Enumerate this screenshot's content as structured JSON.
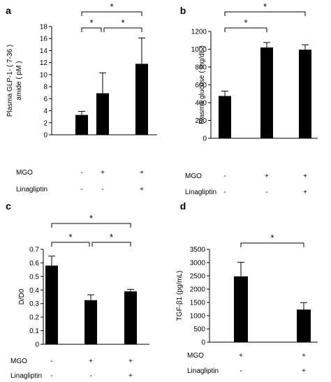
{
  "chart_data": [
    {
      "panel": "a",
      "type": "bar",
      "ylabel_line1": "Plasma GLP-1- ( 7-36 )",
      "ylabel_line2": "amide ( pM )",
      "ylim": [
        0,
        18
      ],
      "yticks": [
        0,
        2,
        4,
        6,
        8,
        10,
        12,
        14,
        16,
        18
      ],
      "values": [
        3.3,
        6.9,
        11.8
      ],
      "errors": [
        0.6,
        3.4,
        4.3
      ],
      "rows": [
        {
          "label": "MGO",
          "signs": [
            "-",
            "+",
            "+"
          ]
        },
        {
          "label": "Linagliptin",
          "signs": [
            "-",
            "-",
            "+"
          ]
        }
      ],
      "significance": [
        {
          "from": 0,
          "to": 1,
          "symbol": "*"
        },
        {
          "from": 1,
          "to": 2,
          "symbol": "*"
        },
        {
          "from": 0,
          "to": 2,
          "symbol": "*"
        }
      ]
    },
    {
      "panel": "b",
      "type": "bar",
      "ylabel_line1": "Plasma glucose ( mg/dL )",
      "ylim": [
        0,
        1200
      ],
      "yticks": [
        0,
        200,
        400,
        600,
        800,
        1000,
        1200
      ],
      "values": [
        475,
        1020,
        995
      ],
      "errors": [
        55,
        55,
        55
      ],
      "rows": [
        {
          "label": "MGO",
          "signs": [
            "-",
            "+",
            "+"
          ]
        },
        {
          "label": "Linagliptin",
          "signs": [
            "-",
            "-",
            "+"
          ]
        }
      ],
      "significance": [
        {
          "from": 0,
          "to": 1,
          "symbol": "*"
        },
        {
          "from": 0,
          "to": 2,
          "symbol": "*"
        }
      ]
    },
    {
      "panel": "c",
      "type": "bar",
      "ylabel_line1": "D/D0",
      "ylim": [
        0,
        0.7
      ],
      "yticks": [
        0,
        0.1,
        0.2,
        0.3,
        0.4,
        0.5,
        0.6,
        0.7
      ],
      "values": [
        0.58,
        0.325,
        0.39
      ],
      "errors": [
        0.07,
        0.04,
        0.015
      ],
      "rows": [
        {
          "label": "MGO",
          "signs": [
            "-",
            "+",
            "+"
          ]
        },
        {
          "label": "Linagliptin",
          "signs": [
            "-",
            "-",
            "+"
          ]
        }
      ],
      "significance": [
        {
          "from": 0,
          "to": 1,
          "symbol": "*"
        },
        {
          "from": 1,
          "to": 2,
          "symbol": "*"
        },
        {
          "from": 0,
          "to": 2,
          "symbol": "*"
        }
      ]
    },
    {
      "panel": "d",
      "type": "bar",
      "ylabel_line1": "TGF-β1  (pg/mL)",
      "ylim": [
        0,
        3500
      ],
      "yticks": [
        0,
        500,
        1000,
        1500,
        2000,
        2500,
        3000,
        3500
      ],
      "values": [
        2480,
        1230
      ],
      "errors": [
        530,
        260
      ],
      "rows": [
        {
          "label": "MGO",
          "signs": [
            "+",
            "+"
          ]
        },
        {
          "label": "Linagliptin",
          "signs": [
            "-",
            "+"
          ]
        }
      ],
      "significance": [
        {
          "from": 0,
          "to": 1,
          "symbol": "*"
        }
      ]
    }
  ]
}
